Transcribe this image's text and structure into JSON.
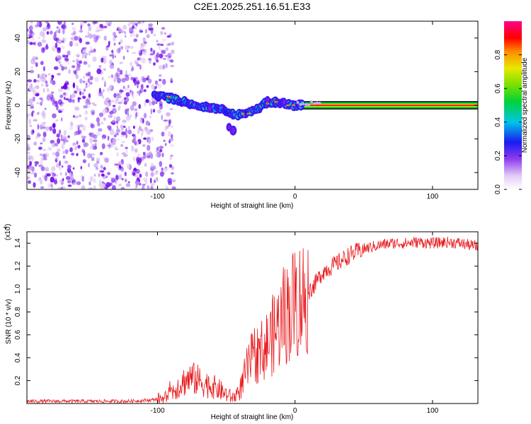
{
  "chart_data": [
    {
      "type": "heatmap",
      "title": "C2E1.2025.251.16.51.E33",
      "xlabel": "Height of straight line (km)",
      "ylabel": "Frequency (Hz)",
      "xlim": [
        -195,
        133
      ],
      "ylim": [
        -50,
        50
      ],
      "xticks": [
        -100,
        0,
        100
      ],
      "yticks": [
        -40,
        -20,
        0,
        20,
        40
      ],
      "ridge": {
        "x": [
          -102,
          -95,
          -85,
          -75,
          -65,
          -55,
          -48,
          -44,
          -38,
          -30,
          -22,
          -15,
          -8,
          -3,
          0,
          5,
          133
        ],
        "y": [
          6,
          5,
          3,
          1,
          -1,
          -2,
          -4,
          -6,
          -5,
          -3,
          1,
          2,
          1,
          0,
          0,
          0,
          0
        ]
      },
      "colorbar": {
        "label": "Normalized spectral amplitude",
        "range": [
          0,
          1
        ],
        "ticks": [
          0.0,
          0.2,
          0.4,
          0.6,
          0.8
        ]
      }
    },
    {
      "type": "line",
      "title": "",
      "xlabel": "Height of straight line (km)",
      "ylabel": "SNR (10 * v/v)",
      "scale_label": "(x10",
      "scale_exponent": "4",
      "color": "#e8191d",
      "xlim": [
        -195,
        133
      ],
      "ylim": [
        0,
        1.5
      ],
      "xticks": [
        -100,
        0,
        100
      ],
      "yticks": [
        0.2,
        0.4,
        0.6,
        0.8,
        1.0,
        1.2,
        1.4
      ],
      "series": [
        {
          "name": "SNR",
          "x": [
            -195,
            -120,
            -105,
            -95,
            -90,
            -85,
            -80,
            -75,
            -70,
            -65,
            -60,
            -55,
            -50,
            -45,
            -40,
            -35,
            -30,
            -25,
            -20,
            -15,
            -10,
            -5,
            0,
            5,
            10,
            15,
            20,
            30,
            40,
            50,
            60,
            70,
            80,
            90,
            100,
            110,
            120,
            133
          ],
          "y": [
            0.02,
            0.02,
            0.03,
            0.05,
            0.1,
            0.15,
            0.2,
            0.22,
            0.2,
            0.17,
            0.15,
            0.12,
            0.08,
            0.05,
            0.12,
            0.3,
            0.42,
            0.45,
            0.52,
            0.62,
            0.72,
            0.82,
            0.88,
            0.92,
            0.98,
            1.05,
            1.15,
            1.22,
            1.3,
            1.35,
            1.38,
            1.4,
            1.4,
            1.41,
            1.4,
            1.41,
            1.4,
            1.37
          ]
        }
      ]
    }
  ]
}
